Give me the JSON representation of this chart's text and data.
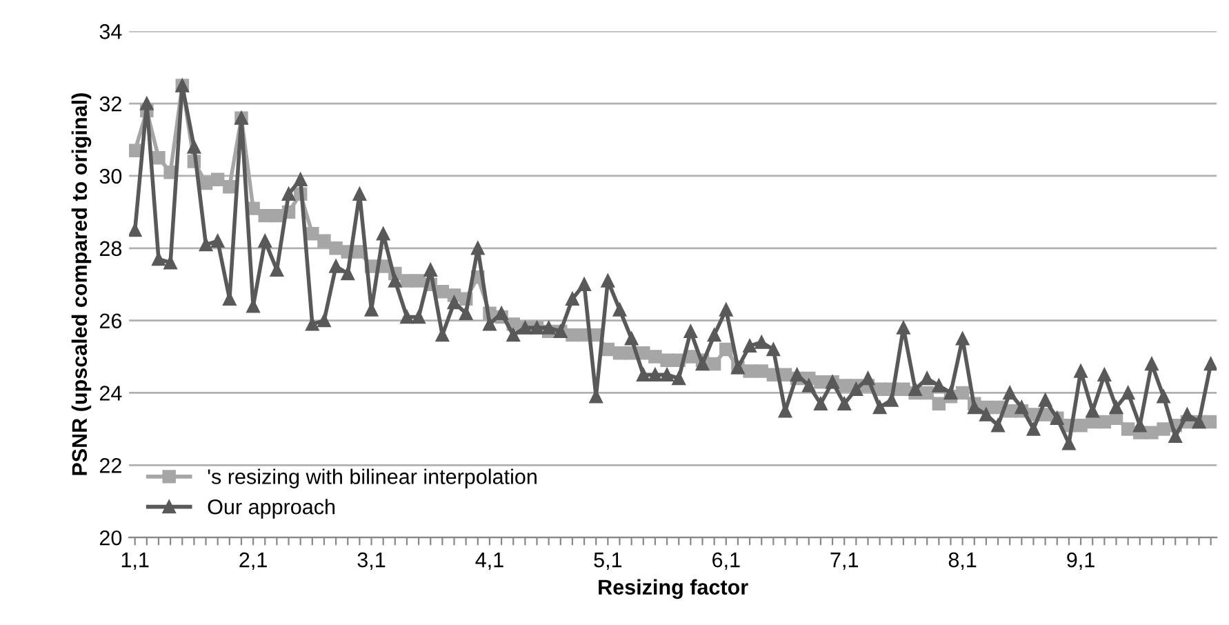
{
  "chart_data": {
    "type": "line",
    "xlabel": "Resizing factor",
    "ylabel": "PSNR (upscaled compared to original)",
    "categories": [
      "1,1",
      null,
      null,
      null,
      null,
      null,
      null,
      null,
      null,
      null,
      "2,1",
      null,
      null,
      null,
      null,
      null,
      null,
      null,
      null,
      null,
      "3,1",
      null,
      null,
      null,
      null,
      null,
      null,
      null,
      null,
      null,
      "4,1",
      null,
      null,
      null,
      null,
      null,
      null,
      null,
      null,
      null,
      "5,1",
      null,
      null,
      null,
      null,
      null,
      null,
      null,
      null,
      null,
      "6,1",
      null,
      null,
      null,
      null,
      null,
      null,
      null,
      null,
      null,
      "7,1",
      null,
      null,
      null,
      null,
      null,
      null,
      null,
      null,
      null,
      "8,1",
      null,
      null,
      null,
      null,
      null,
      null,
      null,
      null,
      null,
      "9,1",
      null,
      null,
      null,
      null,
      null,
      null,
      null,
      null,
      null,
      null,
      null
    ],
    "series": [
      {
        "name": "'s resizing with bilinear interpolation",
        "color": "#a6a6a6",
        "marker": "square",
        "values": [
          30.7,
          31.8,
          30.5,
          30.1,
          32.5,
          30.4,
          29.8,
          29.9,
          29.7,
          31.6,
          29.1,
          28.9,
          28.9,
          29.0,
          29.5,
          28.4,
          28.2,
          28.0,
          27.9,
          27.9,
          27.5,
          27.5,
          27.3,
          27.1,
          27.1,
          27.0,
          26.8,
          26.7,
          26.6,
          27.2,
          26.2,
          26.1,
          25.9,
          25.8,
          25.8,
          25.7,
          25.7,
          25.6,
          25.6,
          25.6,
          25.2,
          25.1,
          25.1,
          25.1,
          25.0,
          24.9,
          24.9,
          25.0,
          24.9,
          24.8,
          25.2,
          24.7,
          24.6,
          24.6,
          24.5,
          24.5,
          24.4,
          24.4,
          24.3,
          24.3,
          24.2,
          24.2,
          24.2,
          24.1,
          24.1,
          24.1,
          24.0,
          24.0,
          23.7,
          23.9,
          24.0,
          23.7,
          23.6,
          23.6,
          23.5,
          23.5,
          23.4,
          23.4,
          23.3,
          23.1,
          23.1,
          23.2,
          23.2,
          23.3,
          23.0,
          22.9,
          22.9,
          23.0,
          23.1,
          23.2,
          23.2,
          23.2
        ]
      },
      {
        "name": "Our approach",
        "color": "#595959",
        "marker": "triangle",
        "values": [
          28.5,
          32.0,
          27.7,
          27.6,
          32.5,
          30.8,
          28.1,
          28.2,
          26.6,
          31.6,
          26.4,
          28.2,
          27.4,
          29.5,
          29.9,
          25.9,
          26.0,
          27.5,
          27.3,
          29.5,
          26.3,
          28.4,
          27.1,
          26.1,
          26.1,
          27.4,
          25.6,
          26.5,
          26.2,
          28.0,
          25.9,
          26.2,
          25.6,
          25.8,
          25.8,
          25.8,
          25.7,
          26.6,
          27.0,
          23.9,
          27.1,
          26.3,
          25.5,
          24.5,
          24.5,
          24.5,
          24.4,
          25.7,
          24.8,
          25.6,
          26.3,
          24.7,
          25.3,
          25.4,
          25.2,
          23.5,
          24.5,
          24.2,
          23.7,
          24.3,
          23.7,
          24.1,
          24.4,
          23.6,
          23.8,
          25.8,
          24.1,
          24.4,
          24.2,
          24.0,
          25.5,
          23.6,
          23.4,
          23.1,
          24.0,
          23.6,
          23.0,
          23.8,
          23.3,
          22.6,
          24.6,
          23.5,
          24.5,
          23.6,
          24.0,
          23.1,
          24.8,
          23.9,
          22.8,
          23.4,
          23.2,
          24.8
        ]
      }
    ],
    "ylim": [
      20,
      34
    ],
    "yticks": [
      20,
      22,
      24,
      26,
      28,
      30,
      32,
      34
    ],
    "grid": "y",
    "legend": "bottom left",
    "line_style": "solid"
  }
}
